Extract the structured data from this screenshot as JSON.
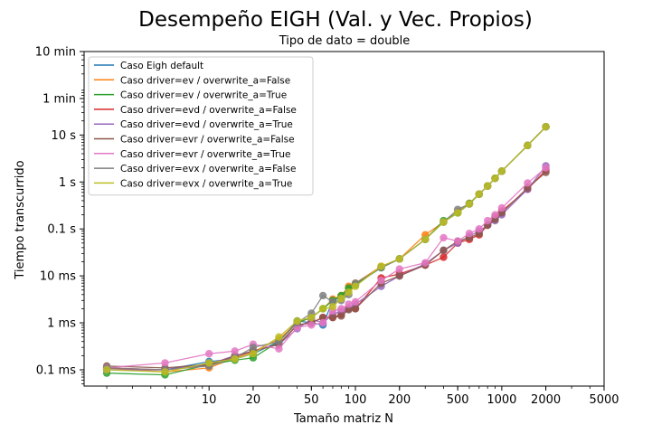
{
  "chart_data": {
    "type": "line",
    "title": "Desempeño EIGH (Val. y Vec. Propios)",
    "subtitle": "Tipo de dato = double",
    "xlabel": "Tamaño matriz N",
    "ylabel": "Tiempo transcurrido",
    "x_scale": "log",
    "y_scale": "log",
    "xlim": [
      1.4,
      5000
    ],
    "ylim": [
      4.5e-05,
      600
    ],
    "xticks": [
      {
        "value": 10,
        "label": "10"
      },
      {
        "value": 20,
        "label": "20"
      },
      {
        "value": 50,
        "label": "50"
      },
      {
        "value": 100,
        "label": "100"
      },
      {
        "value": 200,
        "label": "200"
      },
      {
        "value": 500,
        "label": "500"
      },
      {
        "value": 1000,
        "label": "1000"
      },
      {
        "value": 2000,
        "label": "2000"
      },
      {
        "value": 5000,
        "label": "5000"
      }
    ],
    "yticks": [
      {
        "value": 0.0001,
        "label": "0.1 ms"
      },
      {
        "value": 0.001,
        "label": "1 ms"
      },
      {
        "value": 0.01,
        "label": "10 ms"
      },
      {
        "value": 0.1,
        "label": "0.1 s"
      },
      {
        "value": 1,
        "label": "1 s"
      },
      {
        "value": 10,
        "label": "10 s"
      },
      {
        "value": 60,
        "label": "1 min"
      },
      {
        "value": 600,
        "label": "10 min"
      }
    ],
    "legend_position": "top-left",
    "grid": false,
    "x": [
      2,
      5,
      10,
      15,
      20,
      30,
      40,
      50,
      60,
      70,
      80,
      90,
      100,
      150,
      200,
      300,
      400,
      500,
      600,
      700,
      800,
      900,
      1000,
      1500,
      2000
    ],
    "series": [
      {
        "name": "Caso Eigh default",
        "color": "#1f77b4",
        "values": [
          0.0001,
          0.0001,
          0.00015,
          0.00017,
          0.00022,
          0.0004,
          0.0011,
          0.001,
          0.0009,
          0.003,
          0.0035,
          0.0055,
          0.0065,
          0.015,
          0.023,
          0.06,
          0.14,
          0.22,
          0.34,
          0.55,
          0.82,
          1.2,
          1.7,
          6.0,
          15.0
        ]
      },
      {
        "name": "Caso driver=ev / overwrite_a=False",
        "color": "#ff7f0e",
        "values": [
          0.00011,
          9e-05,
          0.00011,
          0.00018,
          0.00024,
          0.00045,
          0.001,
          0.0013,
          0.002,
          0.0032,
          0.0038,
          0.006,
          0.007,
          0.016,
          0.023,
          0.075,
          0.14,
          0.23,
          0.35,
          0.55,
          0.82,
          1.2,
          1.7,
          6.0,
          15.0
        ]
      },
      {
        "name": "Caso driver=ev / overwrite_a=True",
        "color": "#2ca02c",
        "values": [
          8.5e-05,
          7.8e-05,
          0.00013,
          0.00016,
          0.00018,
          0.0004,
          0.001,
          0.0013,
          0.002,
          0.003,
          0.0038,
          0.0055,
          0.0065,
          0.015,
          0.023,
          0.06,
          0.15,
          0.22,
          0.35,
          0.55,
          0.82,
          1.2,
          1.7,
          6.0,
          15.0
        ]
      },
      {
        "name": "Caso driver=evd / overwrite_a=False",
        "color": "#d62728",
        "values": [
          0.00011,
          0.0001,
          0.00013,
          0.0002,
          0.00025,
          0.00035,
          0.0009,
          0.001,
          0.0013,
          0.0013,
          0.0015,
          0.002,
          0.002,
          0.009,
          0.011,
          0.017,
          0.025,
          0.05,
          0.06,
          0.075,
          0.12,
          0.18,
          0.24,
          0.7,
          1.8
        ]
      },
      {
        "name": "Caso driver=evd / overwrite_a=True",
        "color": "#9467bd",
        "values": [
          0.0001,
          0.0001,
          0.00013,
          0.0002,
          0.00025,
          0.00035,
          0.00075,
          0.0012,
          0.001,
          0.0015,
          0.0018,
          0.002,
          0.0025,
          0.006,
          0.01,
          0.018,
          0.035,
          0.05,
          0.07,
          0.09,
          0.12,
          0.15,
          0.2,
          0.7,
          2.2
        ]
      },
      {
        "name": "Caso driver=evr / overwrite_a=False",
        "color": "#8c564b",
        "values": [
          0.00012,
          0.00011,
          0.00013,
          0.00019,
          0.00025,
          0.00035,
          0.0009,
          0.001,
          0.0013,
          0.0013,
          0.0014,
          0.0019,
          0.002,
          0.007,
          0.01,
          0.017,
          0.035,
          0.055,
          0.065,
          0.08,
          0.12,
          0.16,
          0.22,
          0.75,
          1.6
        ]
      },
      {
        "name": "Caso driver=evr / overwrite_a=True",
        "color": "#e377c2",
        "values": [
          0.00011,
          0.00014,
          0.00022,
          0.00025,
          0.00035,
          0.00028,
          0.0008,
          0.0009,
          0.001,
          0.0018,
          0.002,
          0.0025,
          0.0028,
          0.008,
          0.014,
          0.019,
          0.065,
          0.055,
          0.08,
          0.1,
          0.15,
          0.2,
          0.28,
          0.95,
          2.0
        ]
      },
      {
        "name": "Caso driver=evx / overwrite_a=False",
        "color": "#7f7f7f",
        "values": [
          0.00011,
          0.0001,
          0.00012,
          0.00018,
          0.0003,
          0.0004,
          0.001,
          0.0016,
          0.0038,
          0.0028,
          0.003,
          0.004,
          0.007,
          0.015,
          0.023,
          0.06,
          0.14,
          0.26,
          0.34,
          0.55,
          0.82,
          1.2,
          1.7,
          6.0,
          15.0
        ]
      },
      {
        "name": "Caso driver=evx / overwrite_a=True",
        "color": "#bcbd22",
        "values": [
          0.0001,
          9e-05,
          0.00014,
          0.00017,
          0.00022,
          0.0005,
          0.0011,
          0.0013,
          0.002,
          0.0022,
          0.0033,
          0.0045,
          0.006,
          0.016,
          0.023,
          0.06,
          0.14,
          0.22,
          0.34,
          0.55,
          0.82,
          1.2,
          1.7,
          6.0,
          15.0
        ]
      }
    ]
  }
}
